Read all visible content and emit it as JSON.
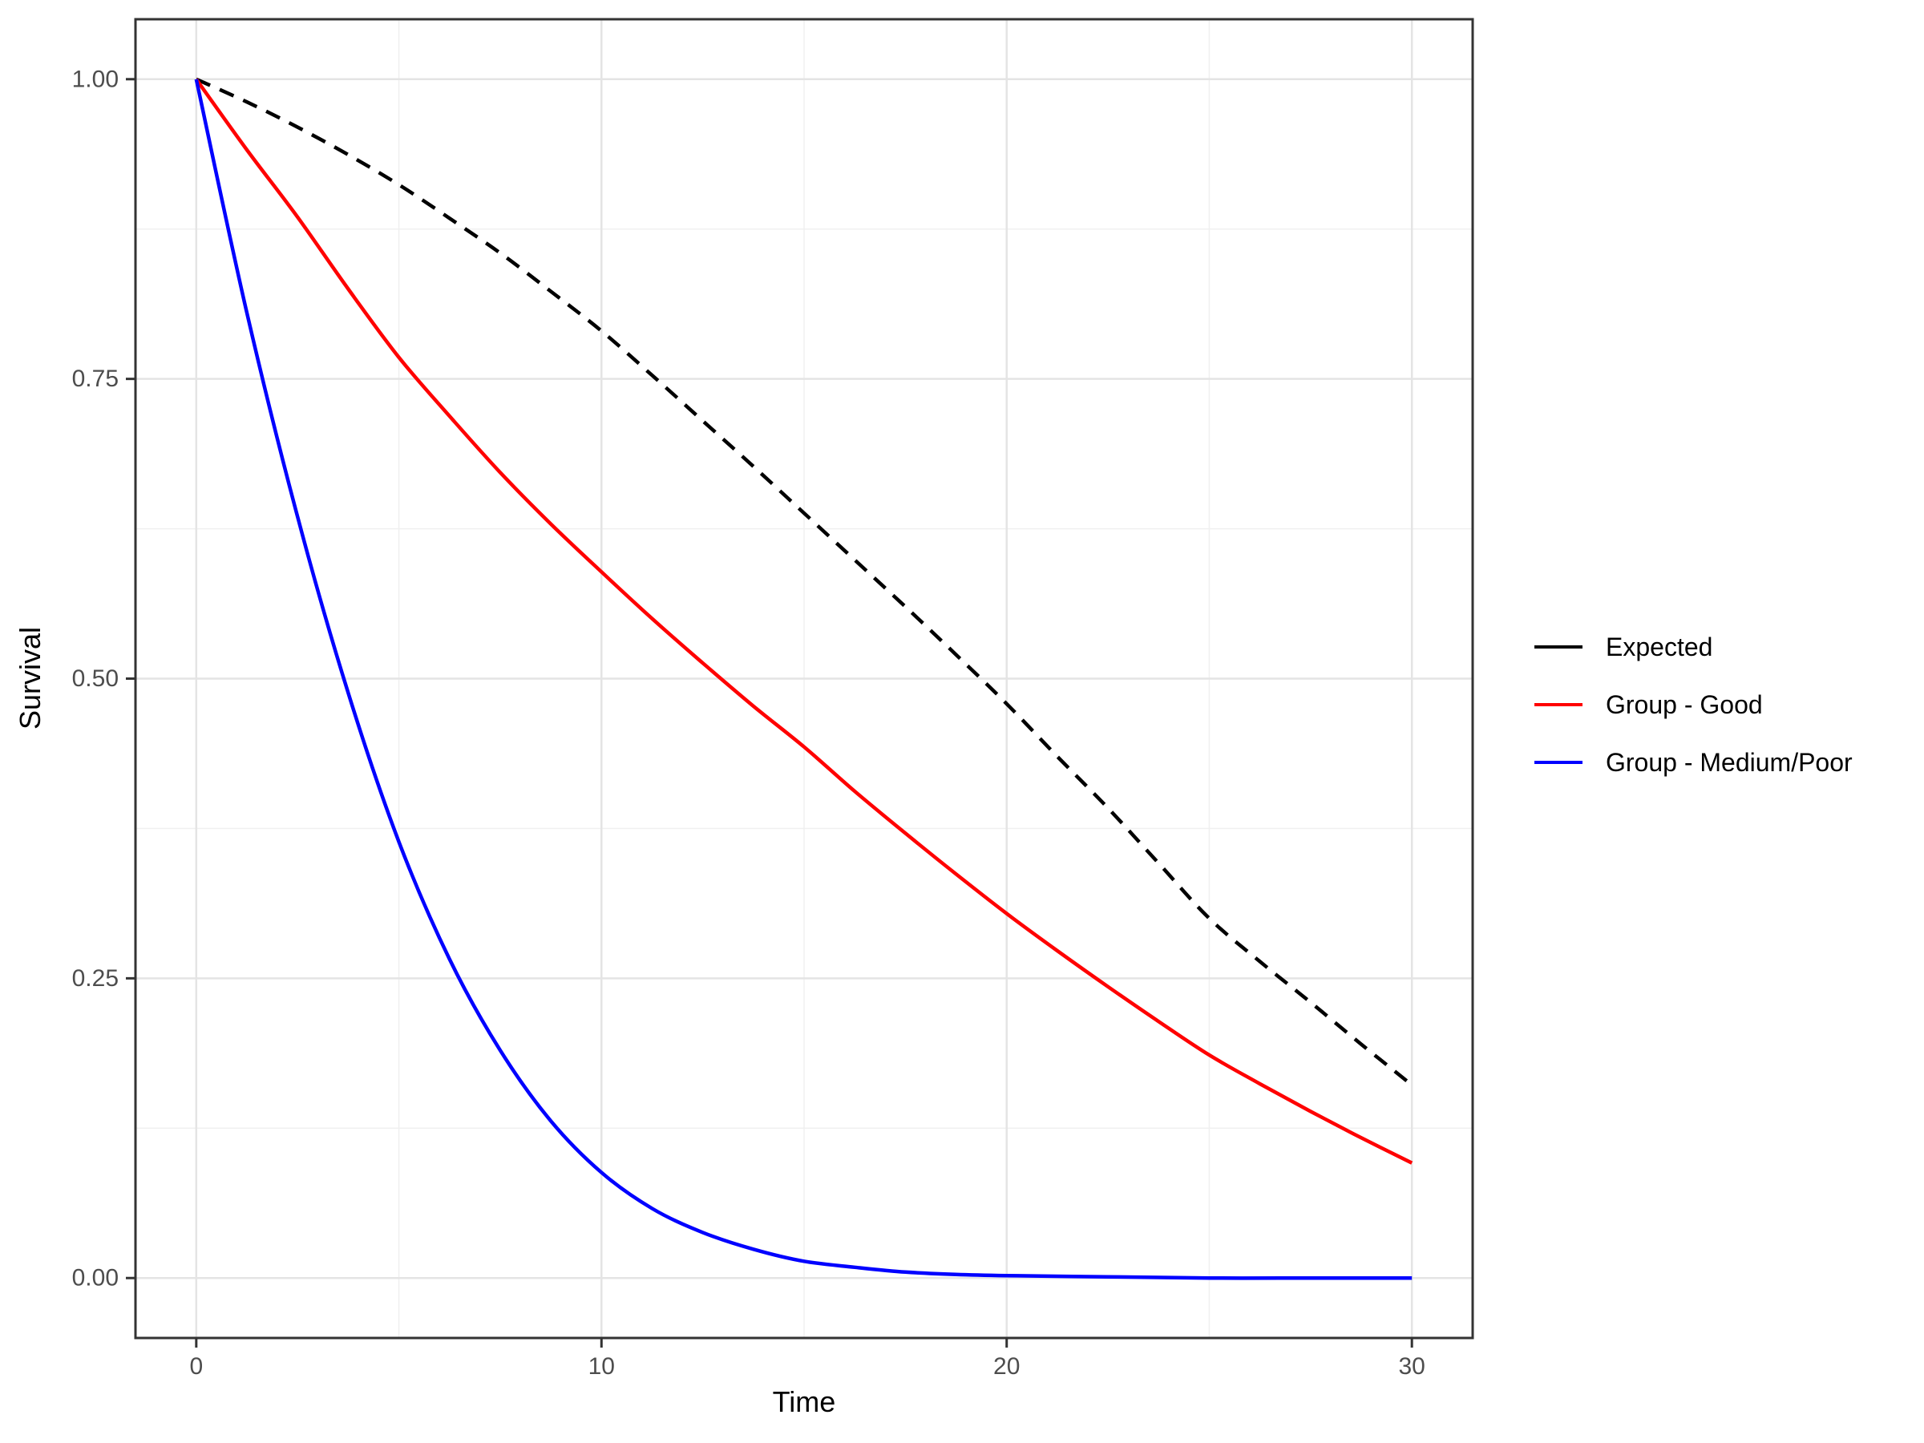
{
  "chart_data": {
    "type": "line",
    "title": "",
    "xlabel": "Time",
    "ylabel": "Survival",
    "xlim": [
      -1.5,
      31.5
    ],
    "ylim": [
      -0.05,
      1.05
    ],
    "x_ticks": [
      0,
      10,
      20,
      30
    ],
    "x_tick_labels": [
      "0",
      "10",
      "20",
      "30"
    ],
    "x_minor_ticks": [
      5,
      15,
      25
    ],
    "y_ticks": [
      0.0,
      0.25,
      0.5,
      0.75,
      1.0
    ],
    "y_tick_labels": [
      "0.00",
      "0.25",
      "0.50",
      "0.75",
      "1.00"
    ],
    "y_minor_ticks": [
      0.125,
      0.375,
      0.625,
      0.875
    ],
    "grid": "major-and-minor",
    "legend_position": "right",
    "legend_key_linetype": "solid",
    "series": [
      {
        "name": "Expected",
        "color": "#000000",
        "linetype": "dashed",
        "x": [
          0,
          1.25,
          2.5,
          3.75,
          5,
          6.25,
          7.5,
          8.75,
          10,
          11.25,
          12.5,
          13.75,
          15,
          16.25,
          17.5,
          18.75,
          20,
          21.25,
          22.5,
          23.75,
          25,
          26.25,
          27.5,
          28.75,
          30
        ],
        "y": [
          1.0,
          0.981,
          0.96,
          0.937,
          0.912,
          0.884,
          0.855,
          0.823,
          0.79,
          0.753,
          0.715,
          0.677,
          0.638,
          0.599,
          0.56,
          0.52,
          0.479,
          0.435,
          0.392,
          0.346,
          0.3,
          0.264,
          0.23,
          0.195,
          0.161
        ]
      },
      {
        "name": "Group - Good",
        "color": "#FF0000",
        "linetype": "solid",
        "x": [
          0,
          1.25,
          2.5,
          3.75,
          5,
          6.25,
          7.5,
          8.75,
          10,
          11.25,
          12.5,
          13.75,
          15,
          16.25,
          17.5,
          18.75,
          20,
          21.25,
          22.5,
          23.75,
          25,
          26.25,
          27.5,
          28.75,
          30
        ],
        "y": [
          1.0,
          0.941,
          0.885,
          0.825,
          0.768,
          0.719,
          0.672,
          0.629,
          0.589,
          0.55,
          0.513,
          0.477,
          0.443,
          0.406,
          0.371,
          0.337,
          0.304,
          0.273,
          0.243,
          0.214,
          0.186,
          0.162,
          0.139,
          0.117,
          0.096
        ]
      },
      {
        "name": "Group - Medium/Poor",
        "color": "#0000FF",
        "linetype": "solid",
        "x": [
          0,
          1.25,
          2.5,
          3.75,
          5,
          6.25,
          7.5,
          8.75,
          10,
          11.25,
          12.5,
          13.75,
          15,
          16.25,
          17.5,
          18.75,
          20,
          22.5,
          25,
          27.5,
          30
        ],
        "y": [
          1.0,
          0.805,
          0.635,
          0.488,
          0.364,
          0.266,
          0.19,
          0.131,
          0.088,
          0.058,
          0.038,
          0.024,
          0.014,
          0.009,
          0.005,
          0.003,
          0.002,
          0.001,
          0.0,
          0.0,
          0.0
        ]
      }
    ],
    "style": {
      "panel_background": "#ffffff",
      "panel_border_color": "#333333",
      "major_grid_color": "#e4e4e4",
      "minor_grid_color": "#f0f0f0",
      "tick_color": "#333333",
      "tick_label_color": "#4d4d4d"
    }
  },
  "axes": {
    "x_title": "Time",
    "y_title": "Survival"
  },
  "legend": {
    "items": [
      {
        "label": "Expected",
        "color": "#000000"
      },
      {
        "label": "Group - Good",
        "color": "#FF0000"
      },
      {
        "label": "Group - Medium/Poor",
        "color": "#0000FF"
      }
    ]
  }
}
